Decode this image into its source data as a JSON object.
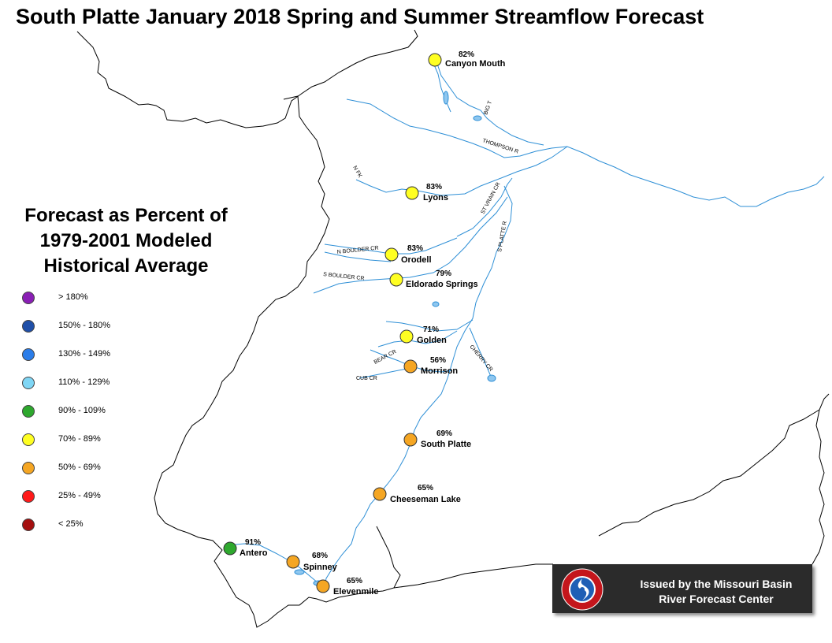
{
  "title": "South Platte January 2018 Spring and Summer Streamflow Forecast",
  "legend": {
    "title_lines": [
      "Forecast as Percent of",
      "1979-2001 Modeled",
      "Historical Average"
    ],
    "items": [
      {
        "label": "> 180%",
        "color": "#8a1fb5"
      },
      {
        "label": "150% - 180%",
        "color": "#1f4fa8"
      },
      {
        "label": "130% - 149%",
        "color": "#2b7de9"
      },
      {
        "label": "110% - 129%",
        "color": "#7fd6f5"
      },
      {
        "label": "90% - 109%",
        "color": "#2ea82e"
      },
      {
        "label": "70% - 89%",
        "color": "#ffff22"
      },
      {
        "label": "50% - 69%",
        "color": "#f5a623"
      },
      {
        "label": "25% - 49%",
        "color": "#ff1a1a"
      },
      {
        "label": "< 25%",
        "color": "#a50f0f"
      }
    ]
  },
  "stations": [
    {
      "name": "Canyon Mouth",
      "pct": "82%",
      "color": "#ffff22"
    },
    {
      "name": "Lyons",
      "pct": "83%",
      "color": "#ffff22"
    },
    {
      "name": "Orodell",
      "pct": "83%",
      "color": "#ffff22"
    },
    {
      "name": "Eldorado Springs",
      "pct": "79%",
      "color": "#ffff22"
    },
    {
      "name": "Golden",
      "pct": "71%",
      "color": "#ffff22"
    },
    {
      "name": "Morrison",
      "pct": "56%",
      "color": "#f5a623"
    },
    {
      "name": "South Platte",
      "pct": "69%",
      "color": "#f5a623"
    },
    {
      "name": "Cheeseman Lake",
      "pct": "65%",
      "color": "#f5a623"
    },
    {
      "name": "Antero",
      "pct": "91%",
      "color": "#2ea82e"
    },
    {
      "name": "Spinney",
      "pct": "68%",
      "color": "#f5a623"
    },
    {
      "name": "Elevenmile",
      "pct": "65%",
      "color": "#f5a623"
    }
  ],
  "rivers": [
    "THOMPSON R",
    "ST VRAIN CR",
    "S PLATTE R",
    "N BOULDER CR",
    "S BOULDER CR",
    "BEAR CR",
    "CUB CR",
    "CHERRY CR",
    "BIG T",
    "N FK"
  ],
  "badge": {
    "logo": "nws-logo",
    "lines": [
      "Issued by the Missouri Basin",
      "River Forecast Center"
    ]
  }
}
